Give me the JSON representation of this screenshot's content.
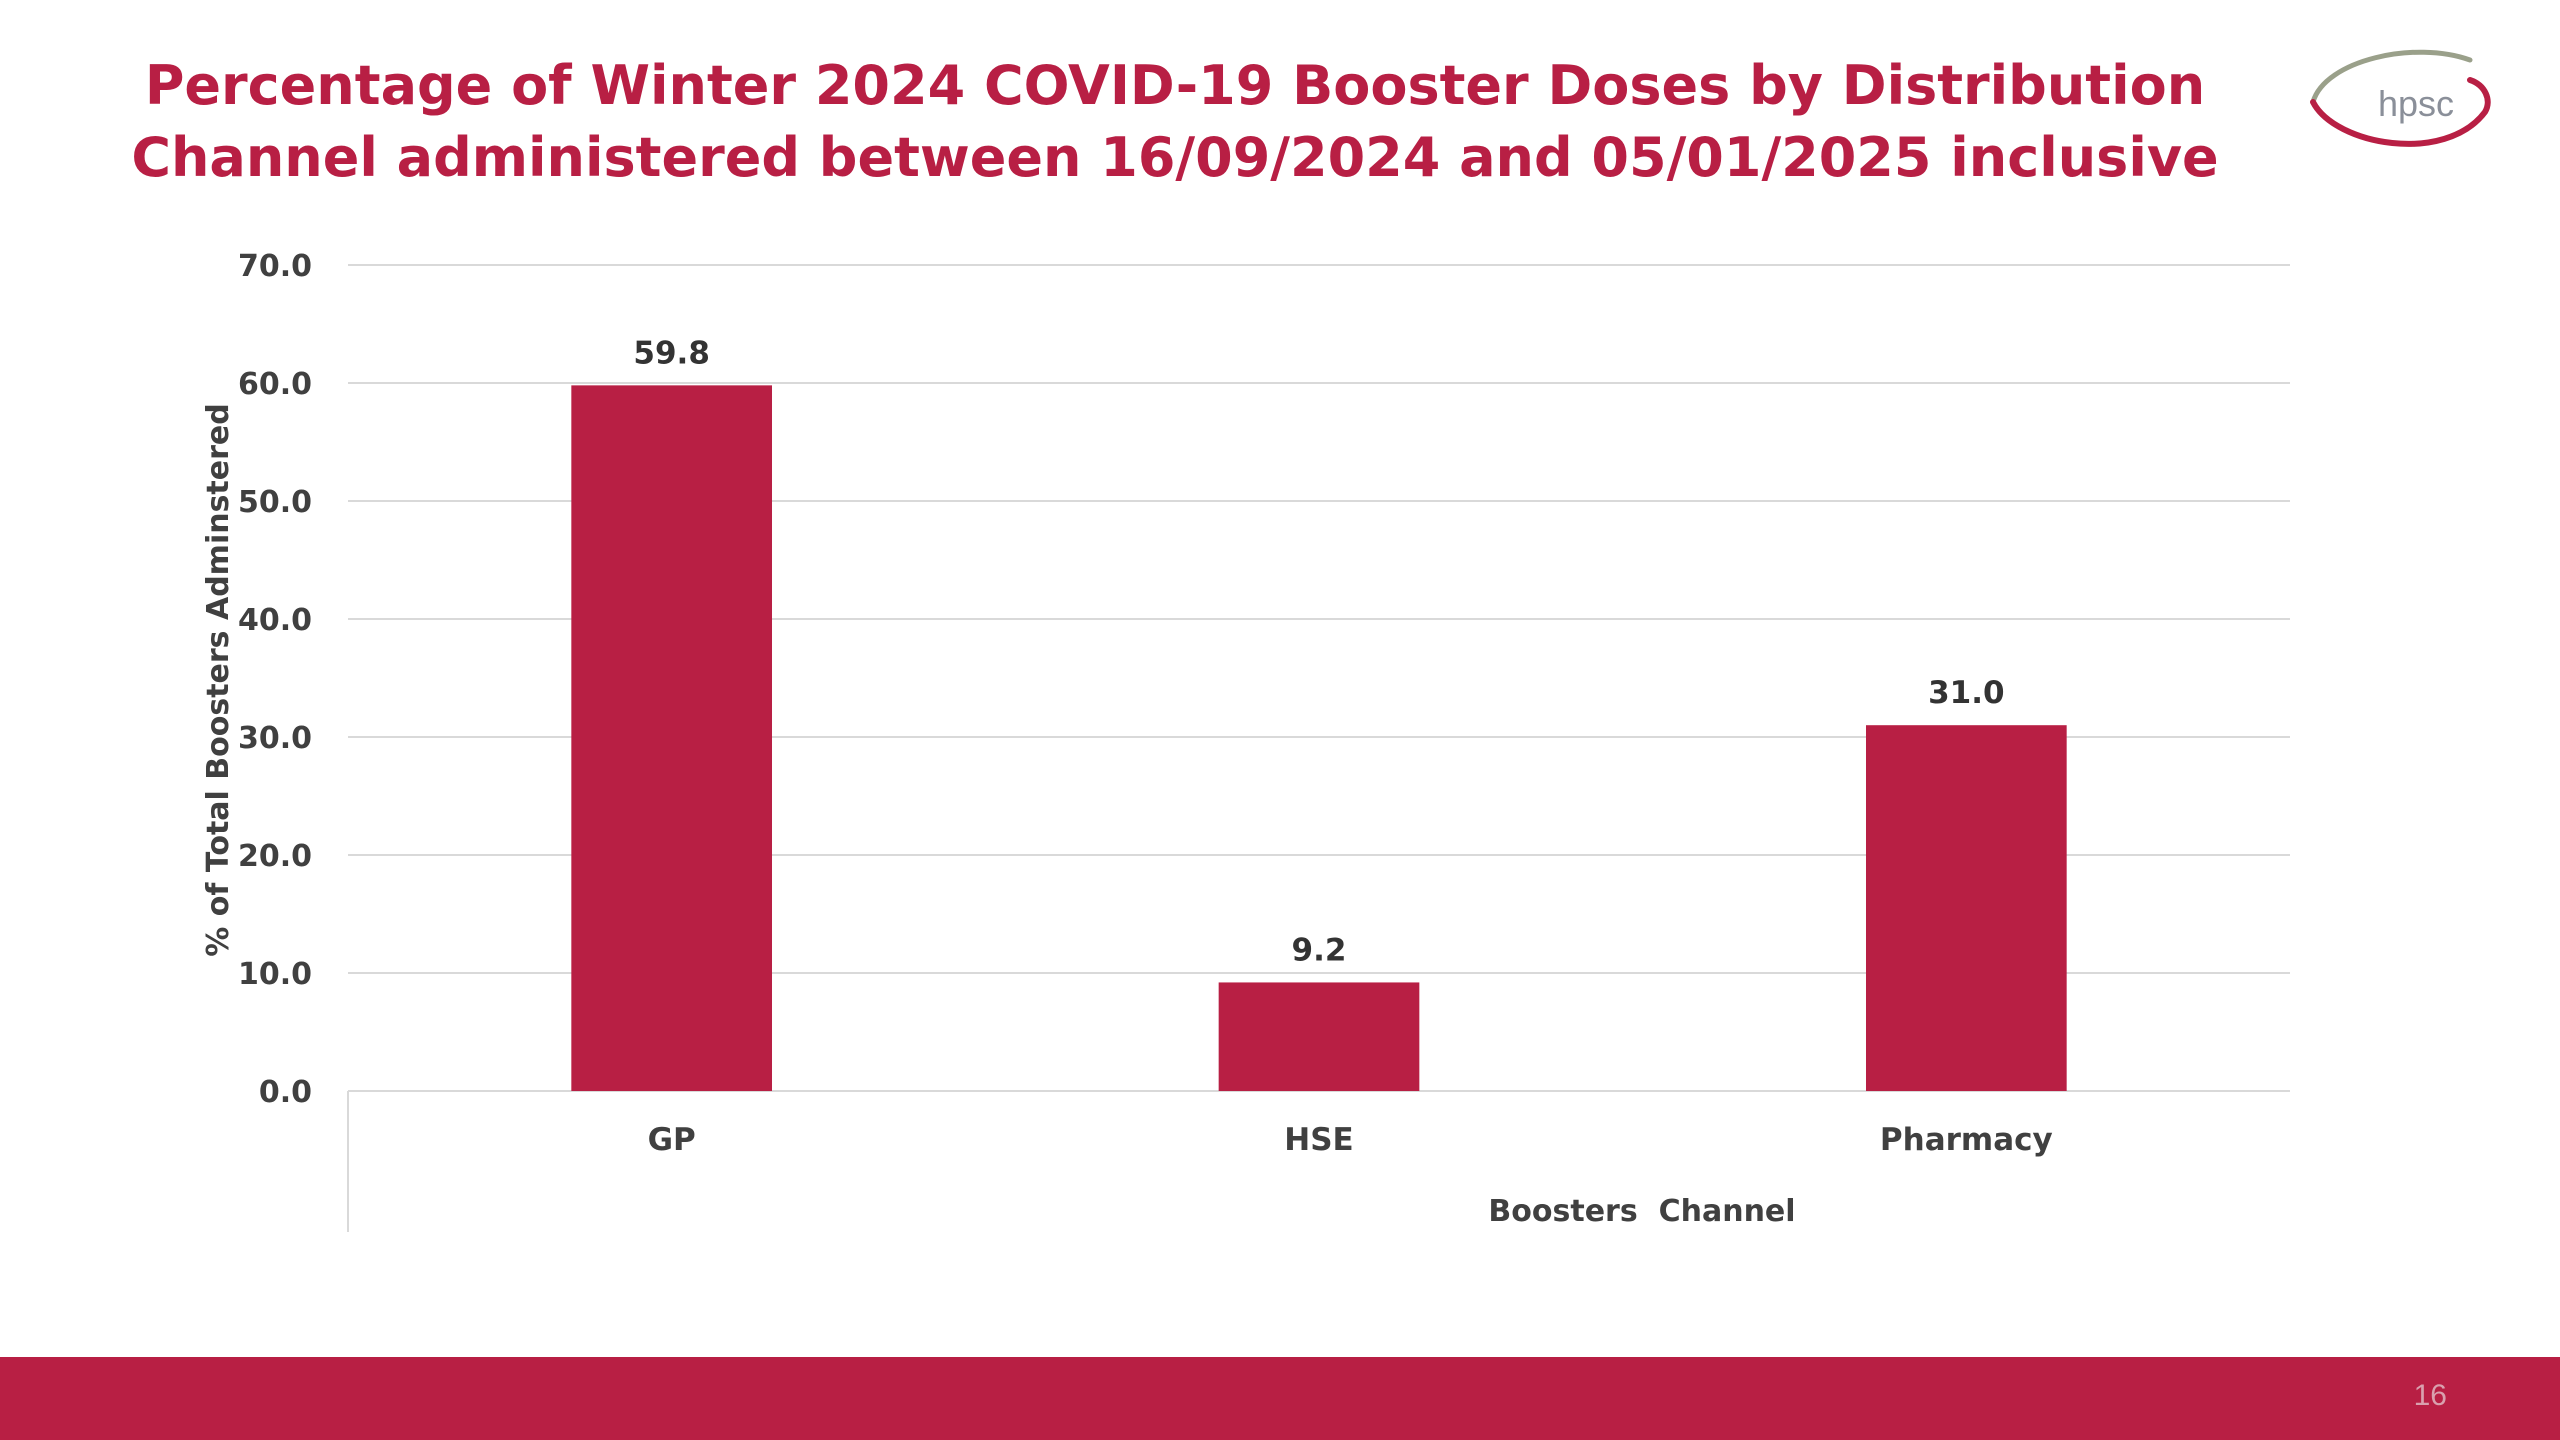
{
  "slide": {
    "title_line1": "Percentage of Winter 2024 COVID-19 Booster Doses by Distribution",
    "title_line2": "Channel administered between 16/09/2024 and 05/01/2025 inclusive",
    "logo_text": "hpsc",
    "page_number": "16"
  },
  "colors": {
    "accent": "#b81f44",
    "bar": "#b81f44",
    "gridline": "#d9d9d9",
    "text": "#404040"
  },
  "chart_data": {
    "type": "bar",
    "title": "Percentage of Winter 2024 COVID-19 Booster Doses by Distribution Channel administered between 16/09/2024 and 05/01/2025 inclusive",
    "categories": [
      "GP",
      "HSE",
      "Pharmacy"
    ],
    "values": [
      59.8,
      9.2,
      31.0
    ],
    "value_labels": [
      "59.8",
      "9.2",
      "31.0"
    ],
    "xlabel": "Boosters  Channel",
    "ylabel": "% of Total Boosters Adminstered",
    "ylim": [
      0,
      70
    ],
    "yticks": [
      "0.0",
      "10.0",
      "20.0",
      "30.0",
      "40.0",
      "50.0",
      "60.0",
      "70.0"
    ],
    "grid": true,
    "legend": "none"
  }
}
